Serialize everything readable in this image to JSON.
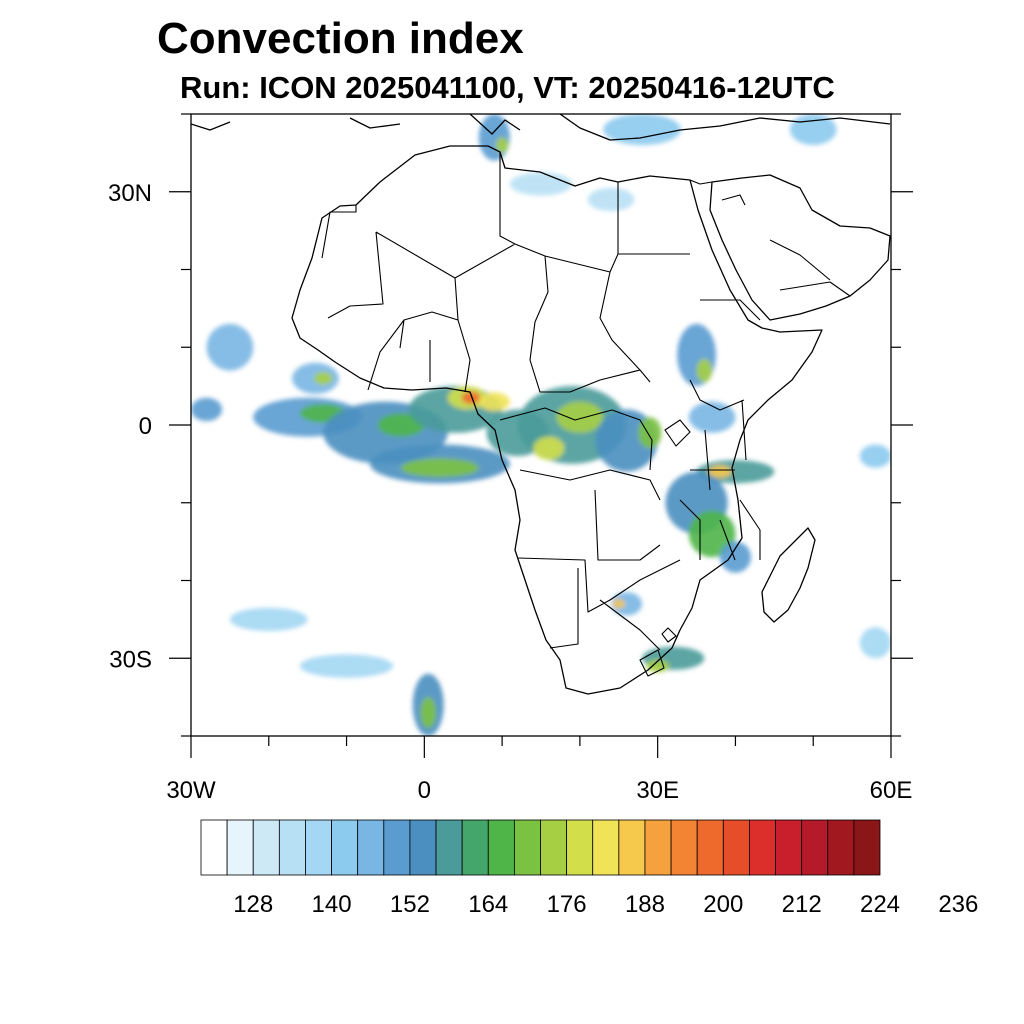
{
  "title": "Convection index",
  "subtitle": "Run: ICON 2025041100,  VT: 20250416-12UTC",
  "map": {
    "lon_range": [
      -30,
      60
    ],
    "lat_range": [
      -40,
      40
    ],
    "lon_ticks": [
      {
        "value": -30,
        "label": "30W"
      },
      {
        "value": 0,
        "label": "0"
      },
      {
        "value": 30,
        "label": "30E"
      },
      {
        "value": 60,
        "label": "60E"
      }
    ],
    "lat_ticks": [
      {
        "value": 30,
        "label": "30N"
      },
      {
        "value": 0,
        "label": "0"
      },
      {
        "value": -30,
        "label": "30S"
      }
    ],
    "minor_lon_step": 10,
    "minor_lat_step": 10
  },
  "colorbar": {
    "colors": [
      "#ffffff",
      "#e6f4fb",
      "#cde9f6",
      "#b8e0f4",
      "#a3d7f3",
      "#8ccaee",
      "#79b6e3",
      "#5a9bd0",
      "#4a8fc0",
      "#4a9b9a",
      "#45a66b",
      "#4fb548",
      "#7cc242",
      "#a6cf44",
      "#d2df4a",
      "#f1e358",
      "#f6c84b",
      "#f5a23e",
      "#f38433",
      "#ee6a2c",
      "#e64d29",
      "#dc2f2b",
      "#c91e2c",
      "#b41a2a",
      "#a1181f",
      "#8a1617"
    ],
    "labels": [
      "128",
      "140",
      "152",
      "164",
      "176",
      "188",
      "200",
      "212",
      "224",
      "236"
    ],
    "label_positions": [
      2,
      5,
      8,
      11,
      14,
      17,
      20,
      23,
      26,
      29
    ]
  },
  "field": {
    "description_free": true,
    "blobs": [
      {
        "lon": -25,
        "lat": 10,
        "rx": 3,
        "ry": 3,
        "level": 6
      },
      {
        "lon": -28,
        "lat": 2,
        "rx": 2,
        "ry": 1.5,
        "level": 7
      },
      {
        "lon": -15,
        "lat": 1,
        "rx": 7,
        "ry": 2.5,
        "level": 7
      },
      {
        "lon": -13,
        "lat": 1.5,
        "rx": 3,
        "ry": 1.2,
        "level": 11
      },
      {
        "lon": -14,
        "lat": 6,
        "rx": 3,
        "ry": 2,
        "level": 6
      },
      {
        "lon": -13,
        "lat": 6,
        "rx": 1.2,
        "ry": 0.8,
        "level": 13
      },
      {
        "lon": -5,
        "lat": -1,
        "rx": 8,
        "ry": 4,
        "level": 8
      },
      {
        "lon": -3,
        "lat": 0,
        "rx": 3,
        "ry": 1.5,
        "level": 11
      },
      {
        "lon": 2,
        "lat": -5,
        "rx": 9,
        "ry": 2.5,
        "level": 8
      },
      {
        "lon": 2,
        "lat": -5.5,
        "rx": 5,
        "ry": 1.2,
        "level": 12
      },
      {
        "lon": 4,
        "lat": 2,
        "rx": 6,
        "ry": 3,
        "level": 9
      },
      {
        "lon": 5.5,
        "lat": 3.5,
        "rx": 2.5,
        "ry": 1.5,
        "level": 14
      },
      {
        "lon": 6,
        "lat": 3.5,
        "rx": 1.2,
        "ry": 0.8,
        "level": 19
      },
      {
        "lon": 9,
        "lat": 3,
        "rx": 2,
        "ry": 1.2,
        "level": 15
      },
      {
        "lon": 12,
        "lat": -1,
        "rx": 4,
        "ry": 3,
        "level": 9
      },
      {
        "lon": 19,
        "lat": 0,
        "rx": 7,
        "ry": 5,
        "level": 9
      },
      {
        "lon": 20,
        "lat": 1,
        "rx": 3,
        "ry": 2,
        "level": 13
      },
      {
        "lon": 16,
        "lat": -3,
        "rx": 2,
        "ry": 1.5,
        "level": 14
      },
      {
        "lon": 26,
        "lat": -2,
        "rx": 4,
        "ry": 4,
        "level": 8
      },
      {
        "lon": 29,
        "lat": -1,
        "rx": 1.5,
        "ry": 2,
        "level": 12
      },
      {
        "lon": 35,
        "lat": 9,
        "rx": 2.5,
        "ry": 4,
        "level": 7
      },
      {
        "lon": 36,
        "lat": 7,
        "rx": 1,
        "ry": 1.5,
        "level": 13
      },
      {
        "lon": 37,
        "lat": 1,
        "rx": 3,
        "ry": 2,
        "level": 6
      },
      {
        "lon": 40,
        "lat": -6,
        "rx": 5,
        "ry": 1.5,
        "level": 9
      },
      {
        "lon": 38,
        "lat": -6,
        "rx": 1.5,
        "ry": 0.8,
        "level": 16
      },
      {
        "lon": 35,
        "lat": -10,
        "rx": 4,
        "ry": 4,
        "level": 8
      },
      {
        "lon": 37,
        "lat": -14,
        "rx": 3,
        "ry": 3,
        "level": 11
      },
      {
        "lon": 40,
        "lat": -17,
        "rx": 2,
        "ry": 2,
        "level": 7
      },
      {
        "lon": 26,
        "lat": -23,
        "rx": 2,
        "ry": 1.5,
        "level": 6
      },
      {
        "lon": 25,
        "lat": -23,
        "rx": 0.8,
        "ry": 0.6,
        "level": 16
      },
      {
        "lon": 32,
        "lat": -30,
        "rx": 4,
        "ry": 1.5,
        "level": 9
      },
      {
        "lon": 30,
        "lat": -31,
        "rx": 1.5,
        "ry": 0.8,
        "level": 13
      },
      {
        "lon": 0.5,
        "lat": -36,
        "rx": 2,
        "ry": 4,
        "level": 8
      },
      {
        "lon": 0.5,
        "lat": -37,
        "rx": 1,
        "ry": 2,
        "level": 12
      },
      {
        "lon": -20,
        "lat": -25,
        "rx": 5,
        "ry": 1.5,
        "level": 4
      },
      {
        "lon": -10,
        "lat": -31,
        "rx": 6,
        "ry": 1.5,
        "level": 4
      },
      {
        "lon": 58,
        "lat": -4,
        "rx": 2,
        "ry": 1.5,
        "level": 5
      },
      {
        "lon": 58,
        "lat": -28,
        "rx": 2,
        "ry": 2,
        "level": 4
      },
      {
        "lon": 9,
        "lat": 37,
        "rx": 2,
        "ry": 3,
        "level": 7
      },
      {
        "lon": 10,
        "lat": 36,
        "rx": 0.8,
        "ry": 1,
        "level": 13
      },
      {
        "lon": 28,
        "lat": 38,
        "rx": 5,
        "ry": 2,
        "level": 5
      },
      {
        "lon": 50,
        "lat": 38,
        "rx": 3,
        "ry": 2,
        "level": 5
      },
      {
        "lon": 15,
        "lat": 31,
        "rx": 4,
        "ry": 1.5,
        "level": 3
      },
      {
        "lon": 24,
        "lat": 29,
        "rx": 3,
        "ry": 1.5,
        "level": 3
      }
    ]
  }
}
